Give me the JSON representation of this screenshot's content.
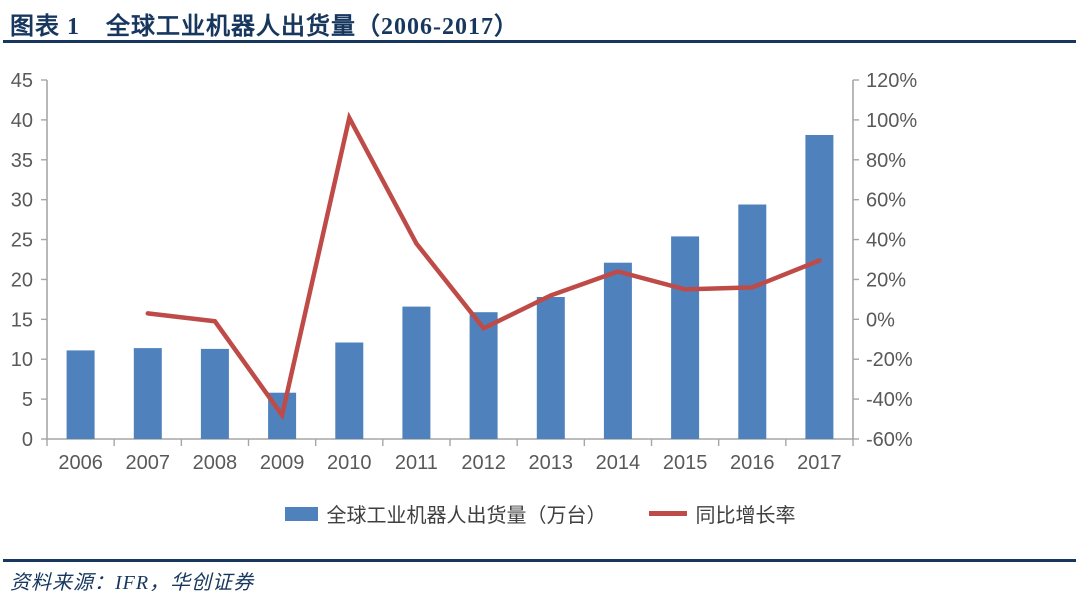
{
  "header": {
    "figure_label": "图表 1",
    "title": "全球工业机器人出货量（2006-2017）"
  },
  "legend": {
    "bar_label": "全球工业机器人出货量（万台）",
    "line_label": "同比增长率"
  },
  "footer": {
    "source_label": "资料来源：IFR，华创证券"
  },
  "colors": {
    "bar": "#4F81BD",
    "line": "#BE4B48",
    "navy": "#17375E",
    "axis_line": "#A6A6A6",
    "tick_label": "#595959"
  },
  "chart_data": {
    "type": "bar",
    "subtype": "bar-line-combo",
    "title": "全球工业机器人出货量（2006-2017）",
    "categories": [
      "2006",
      "2007",
      "2008",
      "2009",
      "2010",
      "2011",
      "2012",
      "2013",
      "2014",
      "2015",
      "2016",
      "2017"
    ],
    "series": [
      {
        "name": "全球工业机器人出货量（万台）",
        "type": "bar",
        "axis": "left",
        "values": [
          11.1,
          11.4,
          11.3,
          5.8,
          12.1,
          16.6,
          15.9,
          17.8,
          22.1,
          25.4,
          29.4,
          38.1
        ]
      },
      {
        "name": "同比增长率",
        "type": "line",
        "axis": "right",
        "unit": "%",
        "values": [
          null,
          3,
          -1,
          -48,
          101,
          38,
          -4.5,
          12,
          24,
          15,
          16,
          29.5
        ]
      }
    ],
    "left_axis": {
      "min": 0,
      "max": 45,
      "step": 5,
      "tick_labels": [
        "0",
        "5",
        "10",
        "15",
        "20",
        "25",
        "30",
        "35",
        "40",
        "45"
      ]
    },
    "right_axis": {
      "min": -60,
      "max": 120,
      "step": 20,
      "format": "percent",
      "tick_labels": [
        "-60%",
        "-40%",
        "-20%",
        "0%",
        "20%",
        "40%",
        "60%",
        "80%",
        "100%",
        "120%"
      ]
    },
    "grid": false,
    "legend_position": "bottom"
  }
}
